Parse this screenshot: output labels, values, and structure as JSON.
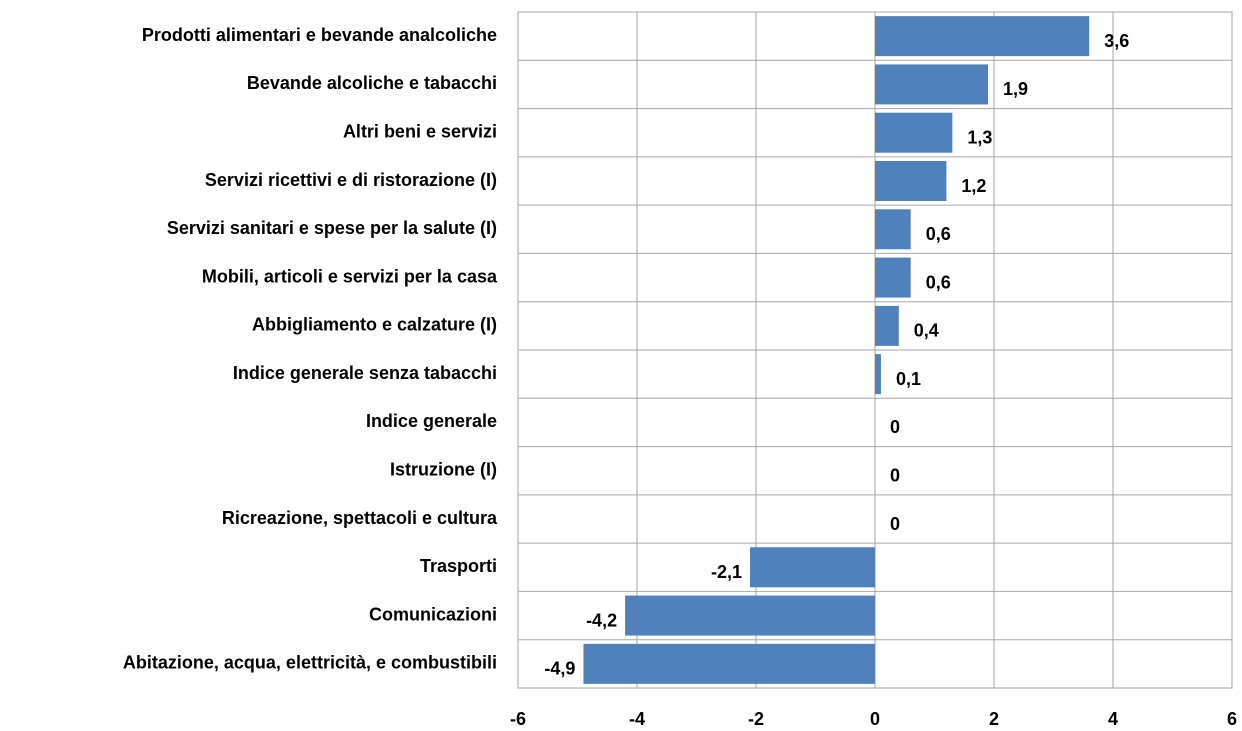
{
  "chart_data": {
    "type": "bar",
    "orientation": "horizontal",
    "categories": [
      "Prodotti alimentari e bevande analcoliche",
      "Bevande alcoliche e tabacchi",
      "Altri beni e servizi",
      "Servizi ricettivi e di ristorazione (I)",
      "Servizi sanitari e spese per la salute (I)",
      "Mobili, articoli e servizi per la casa",
      "Abbigliamento e calzature (I)",
      "Indice generale senza tabacchi",
      "Indice generale",
      "Istruzione (I)",
      "Ricreazione, spettacoli e cultura",
      "Trasporti",
      "Comunicazioni",
      "Abitazione, acqua, elettricità, e combustibili"
    ],
    "values": [
      3.6,
      1.9,
      1.3,
      1.2,
      0.6,
      0.6,
      0.4,
      0.1,
      0,
      0,
      0,
      -2.1,
      -4.2,
      -4.9
    ],
    "value_labels": [
      "3,6",
      "1,9",
      "1,3",
      "1,2",
      "0,6",
      "0,6",
      "0,4",
      "0,1",
      "0",
      "0",
      "0",
      "-2,1",
      "-4,2",
      "-4,9"
    ],
    "value_label_colors": [
      "#000000",
      "#000000",
      "#000000",
      "#000000",
      "#000000",
      "#000000",
      "#000000",
      "#e00000",
      "#e00000",
      "#000000",
      "#000000",
      "#000000",
      "#000000",
      "#000000"
    ],
    "color": "#4f81bd",
    "xlim": [
      -6,
      6
    ],
    "xticks": [
      -6,
      -4,
      -2,
      0,
      2,
      4,
      6
    ],
    "grid": true
  }
}
